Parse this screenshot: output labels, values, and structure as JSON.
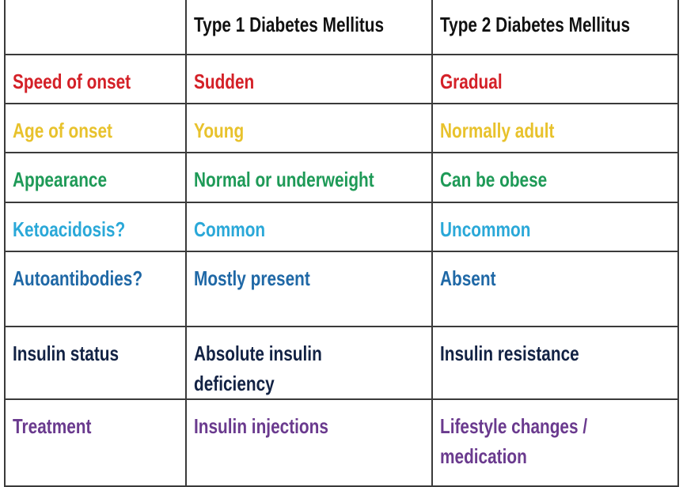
{
  "header": [
    "",
    "Type 1 Diabetes Mellitus",
    "Type 2 Diabetes Mellitus"
  ],
  "rows": [
    {
      "color": "#d42027",
      "cells": [
        "Speed of onset",
        "Sudden",
        "Gradual"
      ]
    },
    {
      "color": "#e8c22c",
      "cells": [
        "Age of onset",
        "Young",
        "Normally adult"
      ]
    },
    {
      "color": "#1e9a57",
      "cells": [
        "Appearance",
        "Normal or underweight",
        "Can be obese"
      ]
    },
    {
      "color": "#2aa8d8",
      "cells": [
        "Ketoacidosis?",
        "Common",
        "Uncommon"
      ]
    },
    {
      "color": "#1f68a6",
      "cells": [
        "Autoantibodies?",
        "Mostly present",
        "Absent"
      ]
    },
    {
      "color": "#122244",
      "cells": [
        "Insulin status",
        "Absolute insulin deficiency",
        "Insulin resistance"
      ]
    },
    {
      "color": "#6a3a8e",
      "cells": [
        "Treatment",
        "Insulin injections",
        "Lifestyle changes / medication"
      ]
    }
  ]
}
